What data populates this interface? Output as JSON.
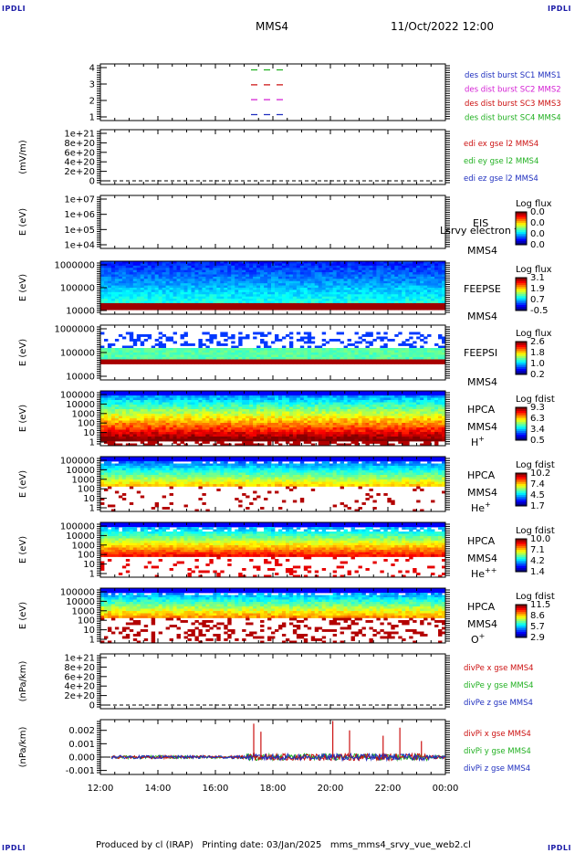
{
  "header": {
    "corner_tl": "IPDLI",
    "corner_tr": "IPDLI",
    "corner_bl": "IPDLI",
    "corner_br": "IPDLI",
    "spacecraft": "MMS4",
    "datetime": "11/Oct/2022 12:00"
  },
  "footer": {
    "text": "Produced by cl (IRAP)   Printing date: 03/Jan/2025   mms_mms4_srvy_vue_web2.cl"
  },
  "colors": {
    "mms1": "#1f2fbf",
    "mms2": "#d41fd4",
    "mms3": "#cc1010",
    "mms4": "#20b020",
    "x": "#cc1010",
    "y": "#20b020",
    "z": "#1f2fbf"
  },
  "chart_data": [
    {
      "type": "line",
      "name": "des-dist-burst",
      "ylim": [
        0.6,
        4.4
      ],
      "ytick_labels": [
        "1",
        "2",
        "3",
        "4"
      ],
      "series": [
        {
          "name": "des dist burst SC1 MMS1",
          "color_key": "mms1",
          "y": 1
        },
        {
          "name": "des dist burst SC2 MMS2",
          "color_key": "mms2",
          "y": 2
        },
        {
          "name": "des dist burst SC3 MMS3",
          "color_key": "mms3",
          "y": 3
        },
        {
          "name": "des dist burst SC4 MMS4",
          "color_key": "mms4",
          "y": 4
        }
      ]
    },
    {
      "type": "line",
      "name": "edi-e",
      "ylabel": "(mV/m)",
      "ytick_labels": [
        "1e+21",
        "8e+20",
        "6e+20",
        "4e+20",
        "2e+20",
        "0"
      ],
      "legend": [
        "edi ex gse l2 MMS4",
        "edi ey gse l2 MMS4",
        "edi ez gse l2 MMS4"
      ],
      "values": "flat at 0"
    },
    {
      "type": "heatmap",
      "name": "eis",
      "ylabel": "E (eV)",
      "ytick_labels": [
        "1e+07",
        "1e+06",
        "1e+05",
        "1e+04"
      ],
      "instrument": "EIS",
      "spacecraft": "MMS4",
      "overlay_text": "Lsrvy electron to",
      "colorbar_title": "Log flux",
      "colorbar_ticks": [
        "0.0",
        "0.0",
        "0.0",
        "0.0"
      ]
    },
    {
      "type": "heatmap",
      "name": "feepse",
      "ylabel": "E (eV)",
      "ytick_labels": [
        "1000000",
        "100000",
        "10000"
      ],
      "instrument": "FEEPSE",
      "spacecraft": "MMS4",
      "colorbar_title": "Log flux",
      "colorbar_ticks": [
        "3.1",
        "1.9",
        "0.7",
        "-0.5"
      ]
    },
    {
      "type": "heatmap",
      "name": "feepsi",
      "ylabel": "E (eV)",
      "ytick_labels": [
        "1000000",
        "100000",
        "10000"
      ],
      "instrument": "FEEPSI",
      "spacecraft": "MMS4",
      "colorbar_title": "Log flux",
      "colorbar_ticks": [
        "2.6",
        "1.8",
        "1.0",
        "0.2"
      ]
    },
    {
      "type": "heatmap",
      "name": "hpca-h",
      "ylabel": "E (eV)",
      "ytick_labels": [
        "100000",
        "10000",
        "1000",
        "100",
        "10",
        "1"
      ],
      "instrument": "HPCA",
      "spacecraft": "MMS4",
      "species": "H",
      "species_sup": "+",
      "colorbar_title": "Log fdist",
      "colorbar_ticks": [
        "9.3",
        "6.3",
        "3.4",
        "0.5"
      ]
    },
    {
      "type": "heatmap",
      "name": "hpca-he",
      "ylabel": "E (eV)",
      "ytick_labels": [
        "100000",
        "10000",
        "1000",
        "100",
        "10",
        "1"
      ],
      "instrument": "HPCA",
      "spacecraft": "MMS4",
      "species": "He",
      "species_sup": "+",
      "colorbar_title": "Log fdist",
      "colorbar_ticks": [
        "10.2",
        "7.4",
        "4.5",
        "1.7"
      ]
    },
    {
      "type": "heatmap",
      "name": "hpca-hepp",
      "ylabel": "E (eV)",
      "ytick_labels": [
        "100000",
        "10000",
        "1000",
        "100",
        "10",
        "1"
      ],
      "instrument": "HPCA",
      "spacecraft": "MMS4",
      "species": "He",
      "species_sup": "++",
      "colorbar_title": "Log fdist",
      "colorbar_ticks": [
        "10.0",
        "7.1",
        "4.2",
        "1.4"
      ]
    },
    {
      "type": "heatmap",
      "name": "hpca-o",
      "ylabel": "E (eV)",
      "ytick_labels": [
        "100000",
        "10000",
        "1000",
        "100",
        "10",
        "1"
      ],
      "instrument": "HPCA",
      "spacecraft": "MMS4",
      "species": "O",
      "species_sup": "+",
      "colorbar_title": "Log fdist",
      "colorbar_ticks": [
        "11.5",
        "8.6",
        "5.7",
        "2.9"
      ]
    },
    {
      "type": "line",
      "name": "divpe",
      "ylabel": "(nPa/km)",
      "ytick_labels": [
        "1e+21",
        "8e+20",
        "6e+20",
        "4e+20",
        "2e+20",
        "0"
      ],
      "legend": [
        "divPe x gse MMS4",
        "divPe y gse MMS4",
        "divPe z gse MMS4"
      ],
      "values": "flat at 0"
    },
    {
      "type": "line",
      "name": "divpi",
      "ylabel": "(nPa/km)",
      "ylim": [
        -0.0013,
        0.0028
      ],
      "ytick_labels": [
        "0.002",
        "0.001",
        "0.000",
        "-0.001"
      ],
      "legend": [
        "divPi x gse MMS4",
        "divPi y gse MMS4",
        "divPi z gse MMS4"
      ],
      "xtick_labels": [
        "12:00",
        "14:00",
        "16:00",
        "18:00",
        "20:00",
        "22:00",
        "00:00"
      ],
      "spikes": [
        {
          "t": "17:20",
          "v": 0.0025
        },
        {
          "t": "17:35",
          "v": 0.0019
        },
        {
          "t": "20:05",
          "v": 0.0027
        },
        {
          "t": "20:40",
          "v": 0.002
        },
        {
          "t": "21:50",
          "v": 0.0016
        },
        {
          "t": "22:25",
          "v": 0.0022
        },
        {
          "t": "23:10",
          "v": 0.0012
        }
      ]
    }
  ]
}
